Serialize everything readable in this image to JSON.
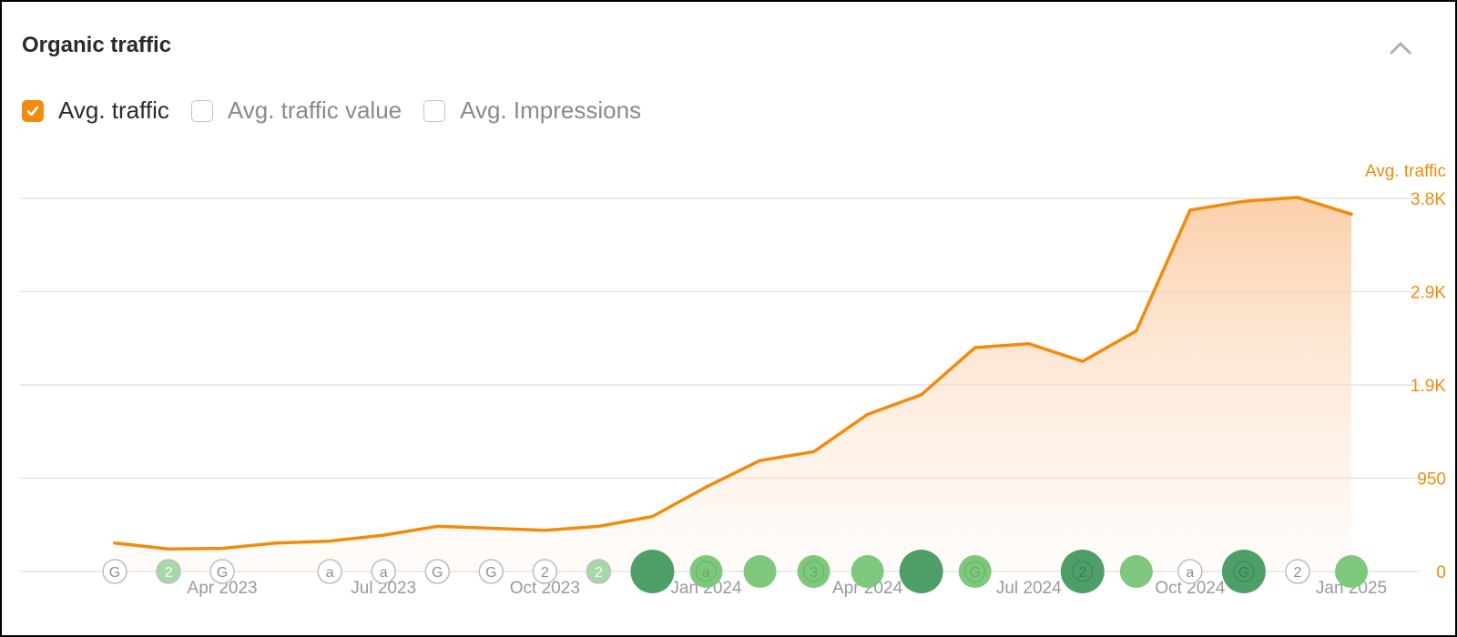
{
  "panel": {
    "title": "Organic traffic",
    "collapse_icon": "chevron-up-icon"
  },
  "legend": {
    "items": [
      {
        "label": "Avg. traffic",
        "checked": true
      },
      {
        "label": "Avg. traffic value",
        "checked": false
      },
      {
        "label": "Avg. Impressions",
        "checked": false
      }
    ]
  },
  "colors": {
    "line": "#f28b0c",
    "axis_text": "#f28b0c",
    "grid": "#e4e4e4",
    "event_dark": "#4e9e68",
    "event_light": "#7ec87e",
    "event_outline": "#bdbdbd"
  },
  "chart_data": {
    "type": "area",
    "y_axis_title": "Avg. traffic",
    "y_ticks": [
      "0",
      "950",
      "1.9K",
      "2.9K",
      "3.8K"
    ],
    "ylim": [
      0,
      3800
    ],
    "x_tick_labels": [
      "Apr 2023",
      "Jul 2023",
      "Oct 2023",
      "Jan 2024",
      "Apr 2024",
      "Jul 2024",
      "Oct 2024",
      "Jan 2025"
    ],
    "x": [
      "2023-02-01",
      "2023-03-01",
      "2023-04-01",
      "2023-05-01",
      "2023-06-01",
      "2023-07-01",
      "2023-08-01",
      "2023-09-01",
      "2023-10-01",
      "2023-11-01",
      "2023-12-01",
      "2024-01-01",
      "2024-02-01",
      "2024-03-01",
      "2024-04-01",
      "2024-05-01",
      "2024-06-01",
      "2024-07-01",
      "2024-08-01",
      "2024-09-01",
      "2024-10-01",
      "2024-11-01",
      "2024-12-01",
      "2025-01-01"
    ],
    "series": [
      {
        "name": "Avg. traffic",
        "values": [
          290,
          230,
          235,
          290,
          310,
          370,
          460,
          440,
          420,
          460,
          560,
          860,
          1130,
          1220,
          1600,
          1800,
          2280,
          2320,
          2140,
          2450,
          3680,
          3770,
          3810,
          3640
        ]
      }
    ],
    "grid": true,
    "events": [
      {
        "date": "2023-02-01",
        "label": "G",
        "style": "outline",
        "size": "small"
      },
      {
        "date": "2023-03-01",
        "label": "2",
        "style": "outline-fill",
        "size": "small"
      },
      {
        "date": "2023-04-01",
        "label": "G",
        "style": "outline",
        "size": "small"
      },
      {
        "date": "2023-06-01",
        "label": "a",
        "style": "outline",
        "size": "small"
      },
      {
        "date": "2023-07-01",
        "label": "a",
        "style": "outline",
        "size": "small"
      },
      {
        "date": "2023-08-01",
        "label": "G",
        "style": "outline",
        "size": "small"
      },
      {
        "date": "2023-09-01",
        "label": "G",
        "style": "outline",
        "size": "small"
      },
      {
        "date": "2023-10-01",
        "label": "2",
        "style": "outline",
        "size": "small"
      },
      {
        "date": "2023-11-01",
        "label": "2",
        "style": "outline-fill",
        "size": "small"
      },
      {
        "date": "2023-12-01",
        "label": "",
        "style": "dark",
        "size": "large"
      },
      {
        "date": "2024-01-01",
        "label": "a",
        "style": "light",
        "size": "medium"
      },
      {
        "date": "2024-02-01",
        "label": "",
        "style": "light",
        "size": "medium"
      },
      {
        "date": "2024-03-01",
        "label": "3",
        "style": "light",
        "size": "medium"
      },
      {
        "date": "2024-04-01",
        "label": "",
        "style": "light",
        "size": "medium"
      },
      {
        "date": "2024-05-01",
        "label": "",
        "style": "dark",
        "size": "large"
      },
      {
        "date": "2024-06-01",
        "label": "G",
        "style": "light",
        "size": "medium"
      },
      {
        "date": "2024-08-01",
        "label": "2",
        "style": "dark",
        "size": "large"
      },
      {
        "date": "2024-09-01",
        "label": "",
        "style": "light",
        "size": "medium"
      },
      {
        "date": "2024-10-01",
        "label": "a",
        "style": "outline",
        "size": "small"
      },
      {
        "date": "2024-11-01",
        "label": "G",
        "style": "dark",
        "size": "large"
      },
      {
        "date": "2024-12-01",
        "label": "2",
        "style": "outline",
        "size": "small"
      },
      {
        "date": "2025-01-01",
        "label": "",
        "style": "light",
        "size": "medium"
      }
    ]
  }
}
